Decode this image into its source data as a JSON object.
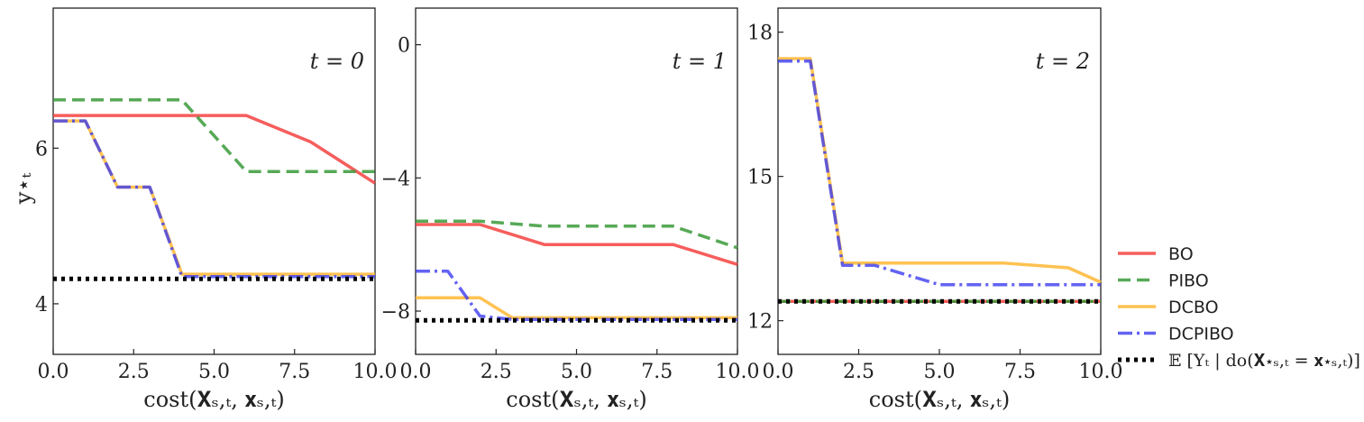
{
  "legend": {
    "placement": "right",
    "entries": [
      {
        "name": "BO",
        "color": "#f4423f",
        "style": "solid"
      },
      {
        "name": "PIBO",
        "color": "#3a9a3a",
        "style": "dashed"
      },
      {
        "name": "DCBO",
        "color": "#ffb733",
        "style": "solid"
      },
      {
        "name": "DCPIBO",
        "color": "#3c3cf0",
        "style": "dashdot"
      },
      {
        "name": "𝔼 [Yₜ | do(𝐗⋆ₛ,ₜ = 𝐱⋆ₛ,ₜ)]",
        "color": "#000000",
        "style": "dotted"
      }
    ]
  },
  "chart_data": [
    {
      "type": "line",
      "annotation": "t = 0",
      "xlabel": "cost(𝐗ₛ,ₜ, 𝐱ₛ,ₜ)",
      "ylabel": "y⋆ₜ",
      "xlim": [
        0,
        10
      ],
      "ylim": [
        3.35,
        7.8
      ],
      "xticks": [
        "0.0",
        "2.5",
        "5.0",
        "7.5",
        "10.0"
      ],
      "yticks": [
        {
          "value": 4,
          "label": "4"
        },
        {
          "value": 6,
          "label": "6"
        }
      ],
      "series": [
        {
          "name": "BO",
          "x": [
            0,
            6,
            8,
            10
          ],
          "y": [
            6.42,
            6.42,
            6.08,
            5.55
          ]
        },
        {
          "name": "PIBO",
          "x": [
            0,
            4,
            6,
            10
          ],
          "y": [
            6.62,
            6.62,
            5.7,
            5.7
          ]
        },
        {
          "name": "DCBO",
          "x": [
            0,
            1,
            2,
            3,
            4,
            10
          ],
          "y": [
            6.35,
            6.35,
            5.5,
            5.5,
            4.38,
            4.38
          ]
        },
        {
          "name": "DCPIBO",
          "x": [
            0,
            1,
            2,
            3,
            4,
            10
          ],
          "y": [
            6.35,
            6.35,
            5.5,
            5.5,
            4.35,
            4.35
          ]
        },
        {
          "name": "expectation",
          "x": [
            0,
            10
          ],
          "y": [
            4.32,
            4.32
          ]
        }
      ]
    },
    {
      "type": "line",
      "annotation": "t = 1",
      "xlabel": "cost(𝐗ₛ,ₜ, 𝐱ₛ,ₜ)",
      "ylabel": "",
      "xlim": [
        0,
        10
      ],
      "ylim": [
        -9.3,
        1.1
      ],
      "xticks": [
        "0.0",
        "2.5",
        "5.0",
        "7.5",
        "10.0"
      ],
      "yticks": [
        {
          "value": 0,
          "label": "0"
        },
        {
          "value": -4,
          "label": "−4"
        },
        {
          "value": -8,
          "label": "−8"
        }
      ],
      "series": [
        {
          "name": "BO",
          "x": [
            0,
            2,
            4,
            8,
            10
          ],
          "y": [
            -5.4,
            -5.4,
            -6.0,
            -6.0,
            -6.6
          ]
        },
        {
          "name": "PIBO",
          "x": [
            0,
            2,
            4,
            8,
            10
          ],
          "y": [
            -5.3,
            -5.3,
            -5.45,
            -5.45,
            -6.1
          ]
        },
        {
          "name": "DCBO",
          "x": [
            0,
            2,
            3,
            10
          ],
          "y": [
            -7.6,
            -7.6,
            -8.2,
            -8.2
          ]
        },
        {
          "name": "DCPIBO",
          "x": [
            0,
            1,
            2,
            3,
            10
          ],
          "y": [
            -6.8,
            -6.8,
            -8.15,
            -8.25,
            -8.25
          ]
        },
        {
          "name": "expectation",
          "x": [
            0,
            10
          ],
          "y": [
            -8.28,
            -8.28
          ]
        }
      ]
    },
    {
      "type": "line",
      "annotation": "t = 2",
      "xlabel": "cost(𝐗ₛ,ₜ, 𝐱ₛ,ₜ)",
      "ylabel": "",
      "xlim": [
        0,
        10
      ],
      "ylim": [
        11.3,
        18.5
      ],
      "xticks": [
        "0.0",
        "2.5",
        "5.0",
        "7.5",
        "10.0"
      ],
      "yticks": [
        {
          "value": 12,
          "label": "12"
        },
        {
          "value": 15,
          "label": "15"
        },
        {
          "value": 18,
          "label": "18"
        }
      ],
      "series": [
        {
          "name": "BO",
          "x": [
            0,
            10
          ],
          "y": [
            12.4,
            12.4
          ]
        },
        {
          "name": "PIBO",
          "x": [
            0,
            10
          ],
          "y": [
            12.4,
            12.4
          ]
        },
        {
          "name": "DCBO",
          "x": [
            0,
            1,
            2,
            7,
            9,
            10
          ],
          "y": [
            17.45,
            17.45,
            13.2,
            13.2,
            13.1,
            12.8
          ]
        },
        {
          "name": "DCPIBO",
          "x": [
            0,
            1,
            2,
            3,
            5,
            10
          ],
          "y": [
            17.4,
            17.4,
            13.15,
            13.15,
            12.75,
            12.75
          ]
        },
        {
          "name": "expectation",
          "x": [
            0,
            10
          ],
          "y": [
            12.4,
            12.4
          ]
        }
      ]
    }
  ]
}
